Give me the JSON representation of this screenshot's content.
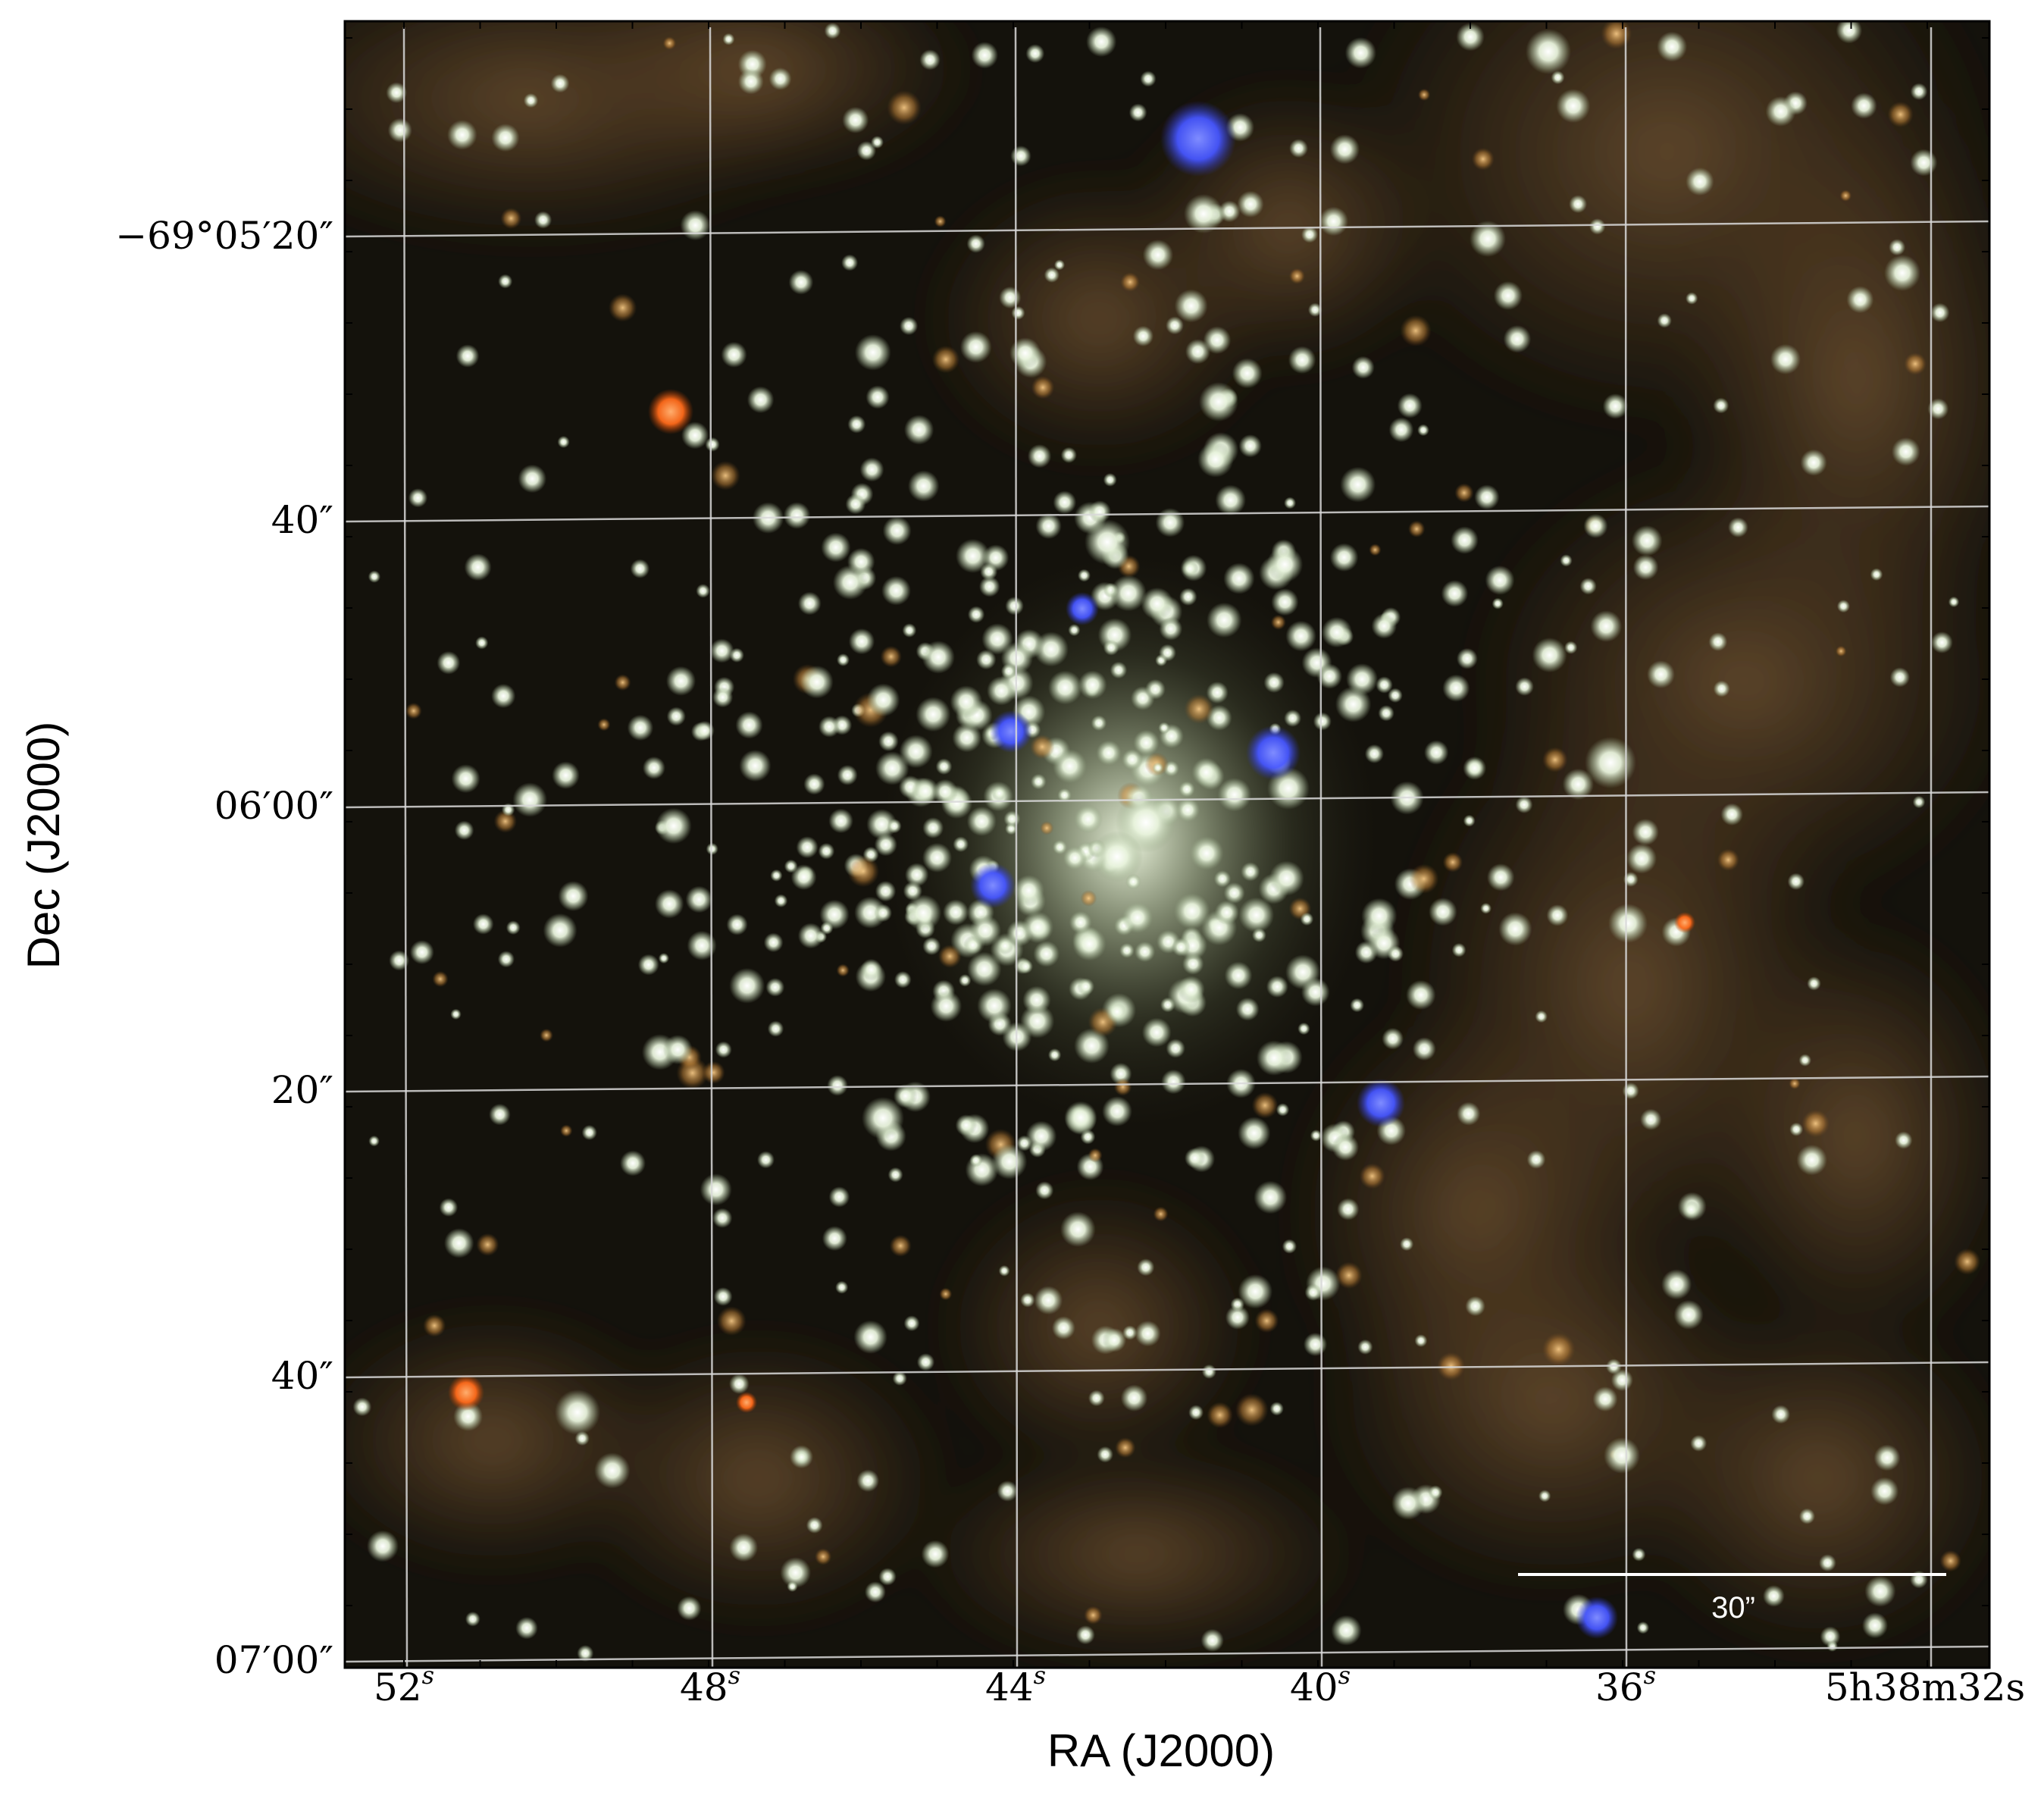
{
  "figure": {
    "xlabel": "RA (J2000)",
    "ylabel": "Dec (J2000)",
    "ra_ticks": [
      {
        "sec": "52",
        "label_main": "52",
        "label_sup": "s"
      },
      {
        "sec": "48",
        "label_main": "48",
        "label_sup": "s"
      },
      {
        "sec": "44",
        "label_main": "44",
        "label_sup": "s"
      },
      {
        "sec": "40",
        "label_main": "40",
        "label_sup": "s"
      },
      {
        "sec": "36",
        "label_main": "36",
        "label_sup": "s"
      },
      {
        "sec": "32",
        "label_main": "5h38m32s"
      }
    ],
    "dec_ticks": [
      {
        "label": "−69°05′20″"
      },
      {
        "label": "40″"
      },
      {
        "label": "06′00″"
      },
      {
        "label": "20″"
      },
      {
        "label": "40″"
      },
      {
        "label": "07′00″"
      }
    ],
    "scale_bar": {
      "label": "30”"
    },
    "colors": {
      "background": "#14120c",
      "nebula": "#6b4e2e",
      "grid": "#d8d8d8",
      "blue_star": "#4a5cff",
      "red_star": "#ff6a1a",
      "white_star": "#eef7e6"
    }
  }
}
